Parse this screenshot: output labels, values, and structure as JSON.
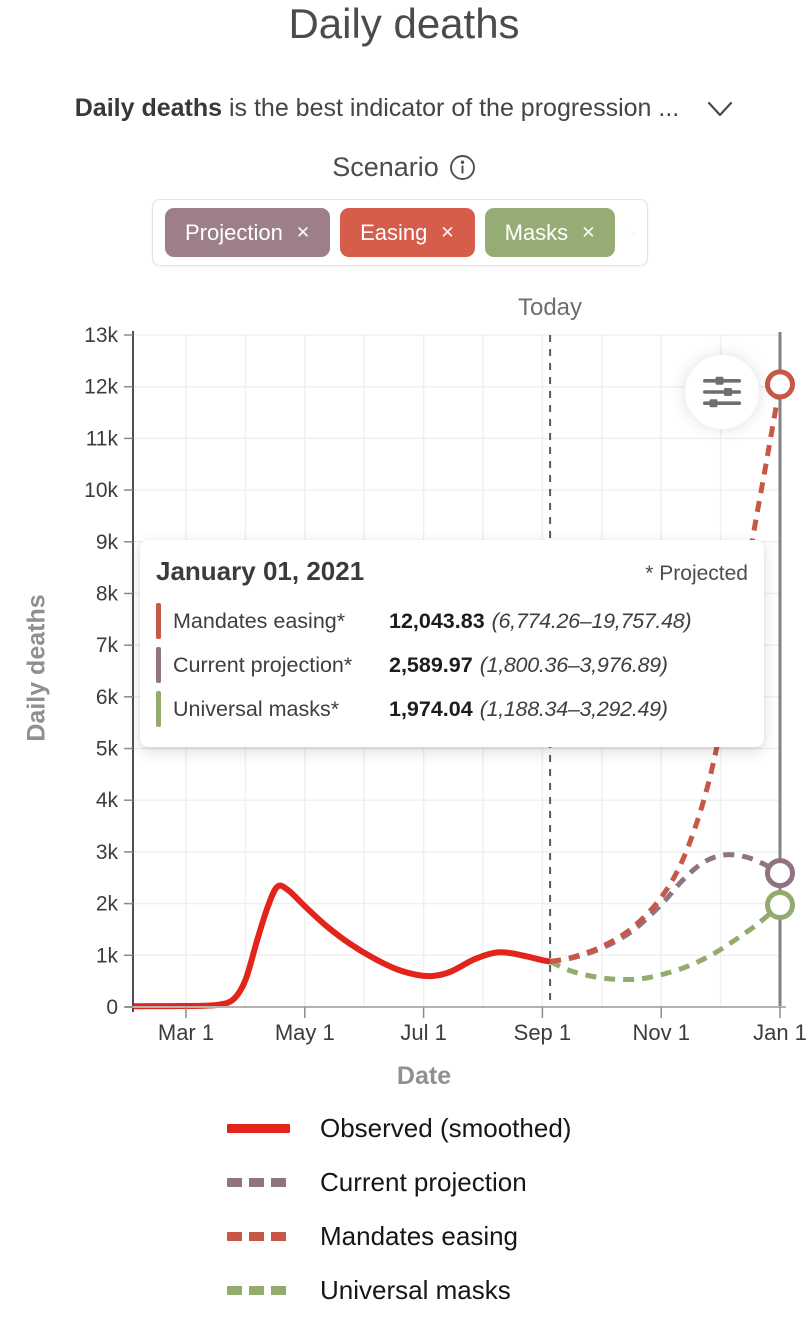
{
  "page": {
    "title": "Daily deaths",
    "subtitle": {
      "bold": "Daily deaths",
      "rest": " is the best indicator of the progression ..."
    },
    "scenario_label": "Scenario"
  },
  "scenario_picker": {
    "chips": [
      {
        "label": "Projection",
        "remove_glyph": "✕",
        "color": "#9c7f8b"
      },
      {
        "label": "Easing",
        "remove_glyph": "✕",
        "color": "#d65c4c"
      },
      {
        "label": "Masks",
        "remove_glyph": "✕",
        "color": "#95ad74"
      }
    ]
  },
  "tooltip": {
    "date": "January 01, 2021",
    "note": "* Projected",
    "rows": [
      {
        "label": "Mandates easing*",
        "value": "12,043.83",
        "range": "(6,774.26–19,757.48)",
        "color": "#c75848"
      },
      {
        "label": "Current projection*",
        "value": "2,589.97",
        "range": "(1,800.36–3,976.89)",
        "color": "#907484"
      },
      {
        "label": "Universal masks*",
        "value": "1,974.04",
        "range": "(1,188.34–3,292.49)",
        "color": "#94ab6e"
      }
    ]
  },
  "chart_data": {
    "type": "line",
    "title": "Daily deaths",
    "xlabel": "Date",
    "ylabel": "Daily deaths",
    "today_label": "Today",
    "ylim": [
      0,
      13000
    ],
    "x_unit": "months since Feb 1, 2020 (Mar 1 = 1)",
    "today_m": 7.13,
    "grid_months": [
      1,
      2,
      3,
      4,
      5,
      6,
      7,
      8,
      9,
      10
    ],
    "y_ticks": [
      {
        "v": 0,
        "label": "0"
      },
      {
        "v": 1000,
        "label": "1k"
      },
      {
        "v": 2000,
        "label": "2k"
      },
      {
        "v": 3000,
        "label": "3k"
      },
      {
        "v": 4000,
        "label": "4k"
      },
      {
        "v": 5000,
        "label": "5k"
      },
      {
        "v": 6000,
        "label": "6k"
      },
      {
        "v": 7000,
        "label": "7k"
      },
      {
        "v": 8000,
        "label": "8k"
      },
      {
        "v": 9000,
        "label": "9k"
      },
      {
        "v": 10000,
        "label": "10k"
      },
      {
        "v": 11000,
        "label": "11k"
      },
      {
        "v": 12000,
        "label": "12k"
      },
      {
        "v": 13000,
        "label": "13k"
      }
    ],
    "x_ticks": [
      {
        "m": 1,
        "label": "Mar 1"
      },
      {
        "m": 3,
        "label": "May 1"
      },
      {
        "m": 5,
        "label": "Jul 1"
      },
      {
        "m": 7,
        "label": "Sep 1"
      },
      {
        "m": 9,
        "label": "Nov 1"
      },
      {
        "m": 11,
        "label": "Jan 1"
      }
    ],
    "series": [
      {
        "name": "Observed (smoothed)",
        "color": "#e2241b",
        "style": "solid",
        "end_marker": false,
        "points": [
          [
            0.11,
            15
          ],
          [
            0.7,
            18
          ],
          [
            1.2,
            22
          ],
          [
            1.55,
            45
          ],
          [
            1.8,
            150
          ],
          [
            2.0,
            520
          ],
          [
            2.2,
            1300
          ],
          [
            2.38,
            1950
          ],
          [
            2.54,
            2330
          ],
          [
            2.72,
            2260
          ],
          [
            3.0,
            1950
          ],
          [
            3.35,
            1580
          ],
          [
            3.75,
            1230
          ],
          [
            4.15,
            950
          ],
          [
            4.55,
            730
          ],
          [
            4.9,
            620
          ],
          [
            5.15,
            600
          ],
          [
            5.45,
            680
          ],
          [
            5.85,
            920
          ],
          [
            6.2,
            1050
          ],
          [
            6.45,
            1045
          ],
          [
            6.75,
            975
          ],
          [
            7.0,
            905
          ],
          [
            7.13,
            880
          ]
        ]
      },
      {
        "name": "Current projection",
        "color": "#907484",
        "style": "dashed",
        "end_marker": true,
        "points": [
          [
            7.13,
            880
          ],
          [
            7.5,
            950
          ],
          [
            8.0,
            1140
          ],
          [
            8.5,
            1460
          ],
          [
            9.0,
            1980
          ],
          [
            9.35,
            2440
          ],
          [
            9.7,
            2790
          ],
          [
            10.05,
            2940
          ],
          [
            10.4,
            2910
          ],
          [
            10.7,
            2780
          ],
          [
            11,
            2589.97
          ]
        ]
      },
      {
        "name": "Mandates easing",
        "color": "#c75848",
        "style": "dashed",
        "end_marker": true,
        "points": [
          [
            7.13,
            880
          ],
          [
            7.5,
            960
          ],
          [
            8.0,
            1170
          ],
          [
            8.5,
            1520
          ],
          [
            9.0,
            2120
          ],
          [
            9.4,
            2950
          ],
          [
            9.8,
            4350
          ],
          [
            10.15,
            6300
          ],
          [
            10.5,
            8800
          ],
          [
            10.78,
            10600
          ],
          [
            11,
            12043.83
          ]
        ]
      },
      {
        "name": "Universal masks",
        "color": "#94ab6e",
        "style": "dashed",
        "end_marker": true,
        "points": [
          [
            7.13,
            880
          ],
          [
            7.45,
            710
          ],
          [
            7.85,
            590
          ],
          [
            8.25,
            535
          ],
          [
            8.65,
            545
          ],
          [
            9.05,
            640
          ],
          [
            9.45,
            790
          ],
          [
            9.85,
            1010
          ],
          [
            10.25,
            1300
          ],
          [
            10.65,
            1630
          ],
          [
            11,
            1974.04
          ]
        ]
      }
    ]
  },
  "legend": {
    "items": [
      {
        "label": "Observed (smoothed)",
        "color": "#e2241b",
        "style": "solid"
      },
      {
        "label": "Current projection",
        "color": "#907484",
        "style": "dashed"
      },
      {
        "label": "Mandates easing",
        "color": "#c75848",
        "style": "dashed"
      },
      {
        "label": "Universal masks",
        "color": "#94ab6e",
        "style": "dashed"
      }
    ]
  }
}
